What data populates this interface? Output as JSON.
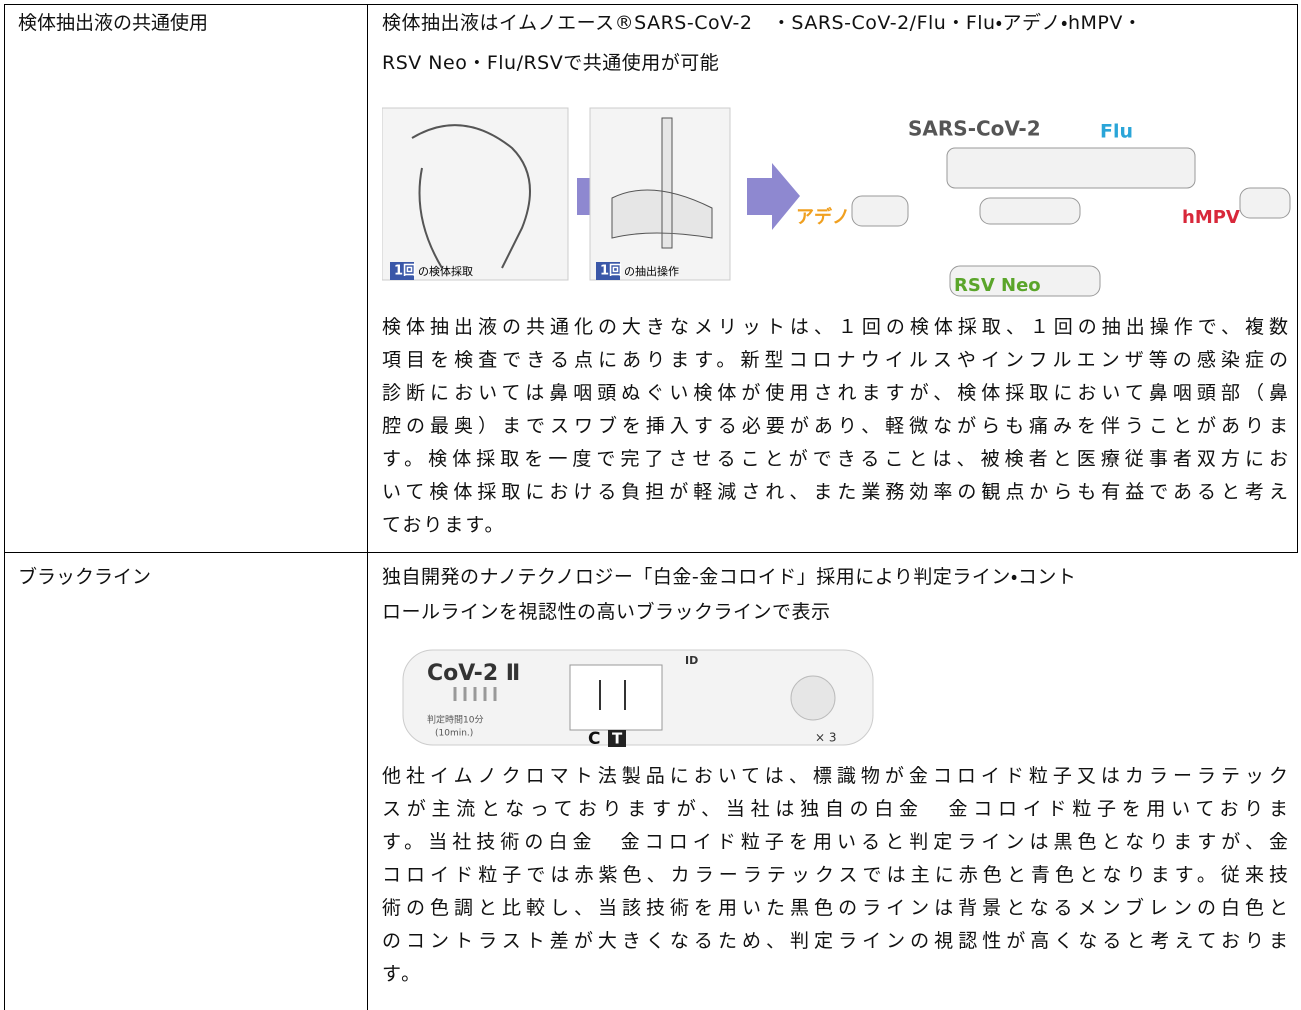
{
  "table": {
    "rows": [
      {
        "label": "検体抽出液の共通使用",
        "heading_lines": [
          "検体抽出液はイムノエース®SARS-CoV-2　・SARS-CoV-2/Flu・Flu・アデノ・hMPV・",
          "RSV Neo・Flu/RSVで共通使用が可能"
        ],
        "figure": {
          "step1": "1回",
          "step1_caption": "の検体採取",
          "step2": "1回",
          "step2_caption": "の抽出操作",
          "sars": "SARS-CoV-2",
          "flu": "Flu",
          "adeno": "アデノ",
          "hmpv": "hMPV",
          "rsv": "RSV Neo"
        },
        "body_lines": [
          "検体抽出液の共通化の大きなメリットは、１回の検体採取、１回の抽出操作で、複数",
          "項目を検査できる点にあります。新型コロナウイルスやインフルエンザ等の感染症の",
          "診断においては鼻咽頭ぬぐい検体が使用されますが、検体採取において鼻咽頭部（鼻",
          "腔の最奥）までスワブを挿入する必要があり、軽微ながらも痛みを伴うことがありま",
          "す。検体採取を一度で完了させることができることは、被検者と医療従事者双方にお",
          "いて検体採取における負担が軽減され、また業務効率の観点からも有益であると考え",
          "ております。"
        ]
      },
      {
        "label": "ブラックライン",
        "heading_lines": [
          "独自開発のナノテクノロジー「白金-金コロイド」採用により判定ライン・コント",
          "ロールラインを視認性の高いブラックラインで表示"
        ],
        "figure": {
          "product": "CoV-2 Ⅱ",
          "time": "判定時間10分",
          "time_en": "(10min.)",
          "id": "ID",
          "c": "C",
          "t": "T",
          "drops": "× 3"
        },
        "body_lines": [
          "他社イムノクロマト法製品においては、標識物が金コロイド粒子又はカラーラテック",
          "スが主流となっておりますが、当社は独自の白金　金コロイド粒子を用いておりま",
          "す。当社技術の白金　金コロイド粒子を用いると判定ラインは黒色となりますが、金",
          "コロイド粒子では赤紫色、カラーラテックスでは主に赤色と青色となります。従来技",
          "術の色調と比較し、当該技術を用いた黒色のラインは背景となるメンブレンの白色と",
          "のコントラスト差が大きくなるため、判定ラインの視認性が高くなると考えておりま",
          "す。"
        ]
      }
    ]
  }
}
